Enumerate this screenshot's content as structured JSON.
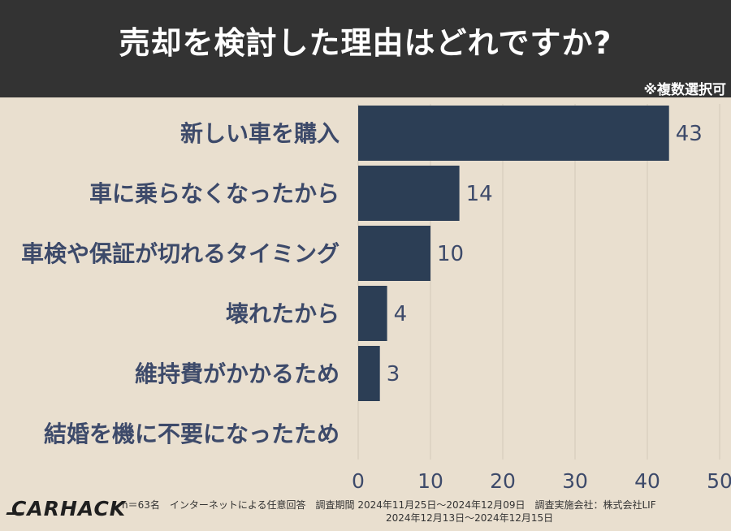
{
  "header": {
    "title": "売却を検討した理由はどれですか?",
    "note": "※複数選択可"
  },
  "chart_data": {
    "type": "bar",
    "orientation": "horizontal",
    "title": "売却を検討した理由はどれですか?",
    "categories": [
      "新しい車を購入",
      "車に乗らなくなったから",
      "車検や保証が切れるタイミング",
      "壊れたから",
      "維持費がかかるため",
      "結婚を機に不要になったため"
    ],
    "values": [
      43,
      14,
      10,
      4,
      3,
      0
    ],
    "value_labels": [
      "43",
      "14",
      "10",
      "4",
      "3",
      ""
    ],
    "xlim": [
      0,
      50
    ],
    "xticks": [
      0,
      10,
      20,
      30,
      40,
      50
    ],
    "xtick_labels": [
      "0",
      "10",
      "20",
      "30",
      "40",
      "50"
    ],
    "grid": true,
    "bar_color": "#2c3e55"
  },
  "footer": {
    "sample": "n＝63名　インターネットによる任意回答　調査期間 2024年11月25日～2024年12月09日　調査実施会社：株式会社LIF",
    "period2": "2024年12月13日～2024年12月15日",
    "logo": "CARHACK"
  },
  "colors": {
    "header_bg": "#333333",
    "chart_bg": "#e9dfcf",
    "bar": "#2c3e55",
    "label_text": "#3d4a6a",
    "grid": "#d8cebe"
  }
}
